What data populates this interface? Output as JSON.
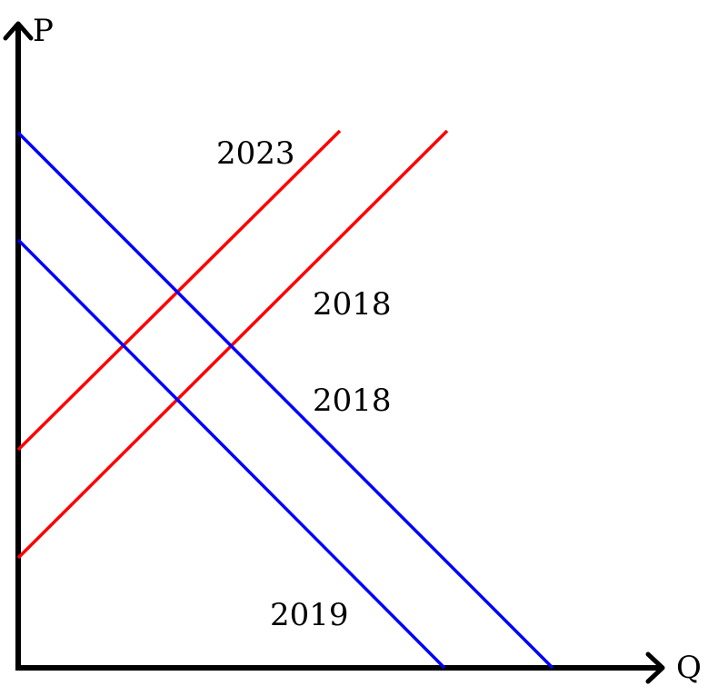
{
  "axes": {
    "y_label": "P",
    "x_label": "Q"
  },
  "labels": {
    "red_upper": "2023",
    "red_lower": "2018",
    "blue_upper": "2018",
    "blue_lower": "2019"
  },
  "colors": {
    "supply": "#ff0000",
    "demand": "#0000ff",
    "axis": "#000000"
  }
}
